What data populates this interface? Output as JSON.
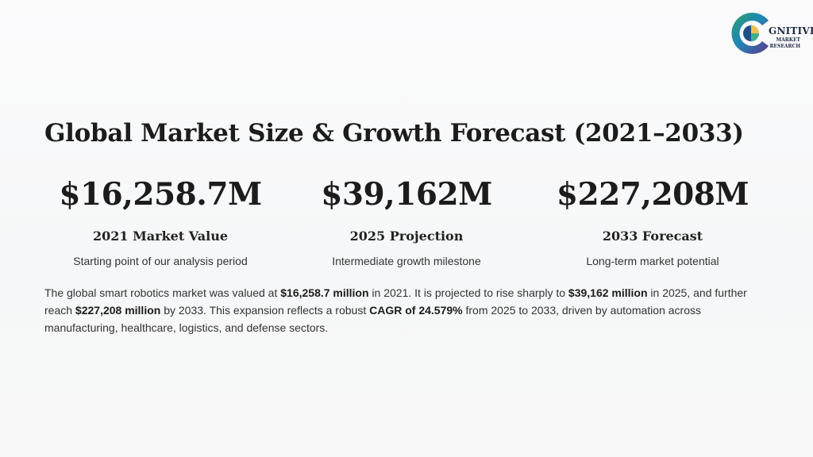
{
  "logo": {
    "word": "GNITIVE",
    "line1": "MARKET",
    "line2": "RESEARCH",
    "colors": [
      "#2e7d5b",
      "#1e88b6",
      "#5b3a8e",
      "#f2c14e"
    ]
  },
  "title": "Global Market Size & Growth Forecast (2021–2033)",
  "stats": [
    {
      "value": "$16,258.7M",
      "label": "2021 Market Value",
      "desc": "Starting point of our analysis period"
    },
    {
      "value": "$39,162M",
      "label": "2025 Projection",
      "desc": "Intermediate growth milestone"
    },
    {
      "value": "$227,208M",
      "label": "2033 Forecast",
      "desc": "Long-term market potential"
    }
  ],
  "summary": {
    "t1": "The global smart robotics market was valued at ",
    "b1": "$16,258.7 million",
    "t2": " in 2021. It is projected to rise sharply to ",
    "b2": "$39,162 million",
    "t3": " in 2025, and further reach ",
    "b3": "$227,208 million",
    "t4": " by 2033. This expansion reflects a robust ",
    "b4": "CAGR of 24.579%",
    "t5": " from 2025 to 2033, driven by automation across manufacturing, healthcare, logistics, and defense sectors."
  }
}
